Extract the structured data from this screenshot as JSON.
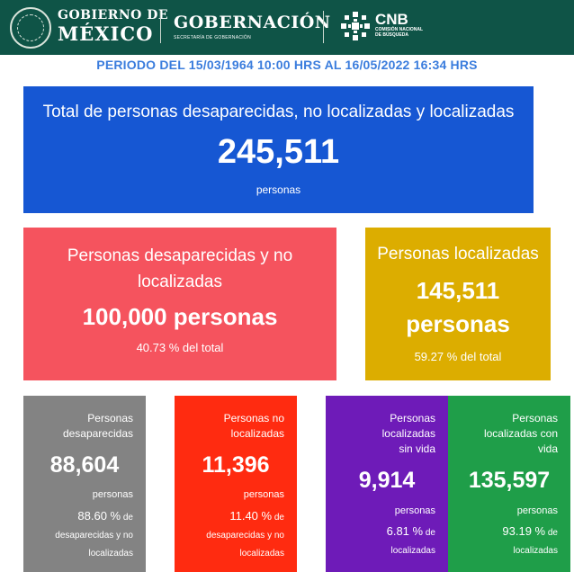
{
  "header": {
    "gob_line1": "GOBIERNO DE",
    "gob_line2": "MÉXICO",
    "gobernacion": "GOBERNACIÓN",
    "gobernacion_sub": "SECRETARÍA DE GOBERNACIÓN",
    "cnb": "CNB",
    "cnb_sub1": "COMISIÓN NACIONAL",
    "cnb_sub2": "DE BÚSQUEDA",
    "bg_color": "#0f5447"
  },
  "period": "PERIODO DEL 15/03/1964 10:00 HRS AL 16/05/2022 16:34 HRS",
  "total": {
    "title": "Total de personas desaparecidas, no localizadas y localizadas",
    "number": "245,511",
    "unit": "personas",
    "color": "#1657d3"
  },
  "desaparecidas_no_localizadas": {
    "title": "Personas desaparecidas y no localizadas",
    "number": "100,000 personas",
    "percent": "40.73 %",
    "percent_suffix": "del total",
    "color": "#f5535e"
  },
  "localizadas": {
    "title": "Personas localizadas",
    "number": "145,511",
    "unit": "personas",
    "percent": "59.27 %",
    "percent_suffix": "del total",
    "color": "#dcad00"
  },
  "cards": [
    {
      "title_l1": "Personas",
      "title_l2": "desaparecidas",
      "number": "88,604",
      "unit": "personas",
      "percent": "88.60 %",
      "suffix_l1": "de",
      "suffix_l2": "desaparecidas y no",
      "suffix_l3": "localizadas",
      "color": "#838383"
    },
    {
      "title_l1": "Personas no",
      "title_l2": "localizadas",
      "number": "11,396",
      "unit": "personas",
      "percent": "11.40 %",
      "suffix_l1": "de",
      "suffix_l2": "desaparecidas y no",
      "suffix_l3": "localizadas",
      "color": "#ff2b10"
    },
    {
      "title_l1": "Personas",
      "title_l2": "localizadas",
      "title_l3": "sin vida",
      "number": "9,914",
      "unit": "personas",
      "percent": "6.81 %",
      "suffix_l1": "de",
      "suffix_l2": "localizadas",
      "color": "#6e1bb8"
    },
    {
      "title_l1": "Personas",
      "title_l2": "localizadas con",
      "title_l3": "vida",
      "number": "135,597",
      "unit": "personas",
      "percent": "93.19 %",
      "suffix_l1": "de",
      "suffix_l2": "localizadas",
      "color": "#1f9e49"
    }
  ]
}
